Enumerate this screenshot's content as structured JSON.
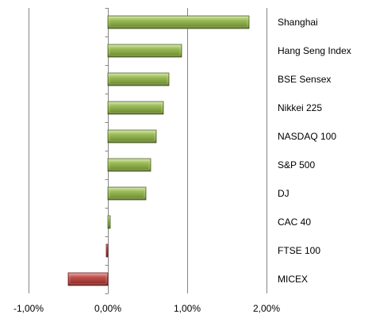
{
  "chart_data": {
    "type": "bar",
    "orientation": "horizontal",
    "style": "3d-bevel",
    "title": "",
    "xlabel": "",
    "ylabel": "",
    "categories": [
      "Shanghai",
      "Hang Seng Index",
      "BSE Sensex",
      "Nikkei 225",
      "NASDAQ 100",
      "S&P 500",
      "DJ",
      "CAC 40",
      "FTSE 100",
      "MICEX"
    ],
    "values": [
      1.78,
      0.93,
      0.77,
      0.7,
      0.61,
      0.54,
      0.48,
      0.03,
      -0.02,
      -0.5
    ],
    "value_unit": "%",
    "xlim": [
      -1.0,
      2.0
    ],
    "x_ticks": [
      -1.0,
      0.0,
      1.0,
      2.0
    ],
    "x_tick_labels": [
      "-1,00%",
      "0,00%",
      "1,00%",
      "2,00%"
    ],
    "grid": "vertical",
    "legend": "none",
    "category_labels_position": "right",
    "colors": {
      "positive": "#9bbb59",
      "positive_light": "#d4e6a9",
      "positive_dark": "#4f6228",
      "negative": "#c0504d",
      "negative_light": "#e6a9a7",
      "negative_dark": "#6b1f1d",
      "grid": "#868686"
    }
  }
}
